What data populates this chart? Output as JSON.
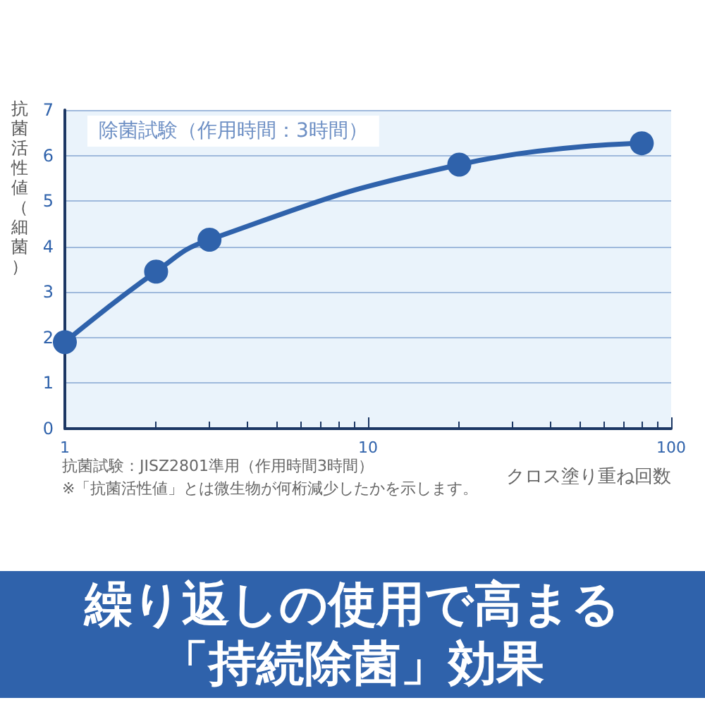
{
  "chart_data": {
    "type": "line",
    "title": "繰り返しの使用で高まる「持続除菌」効果",
    "subtitle": "除菌試験（作用時間：3時間）",
    "xlabel": "クロス塗り重ね回数",
    "ylabel": "抗菌活性値（細菌）",
    "annotations": [
      "抗菌試験：JISZ2801準用（作用時間3時間）",
      "※「抗菌活性値」とは微生物が何桁減少したかを示します。"
    ],
    "x": [
      1,
      2,
      3,
      20,
      80
    ],
    "series": [
      {
        "color": "#2f62ab",
        "values": [
          1.9,
          3.45,
          4.15,
          5.8,
          6.27
        ]
      }
    ],
    "log": "x",
    "xlim": [
      1,
      100
    ],
    "xticks": [
      1,
      10,
      100
    ],
    "ylim": [
      0,
      7
    ],
    "yticks": [
      0,
      1,
      2,
      3,
      4,
      5,
      6,
      7
    ],
    "grid": "y",
    "marker": "circle",
    "line_style": "solid"
  }
}
